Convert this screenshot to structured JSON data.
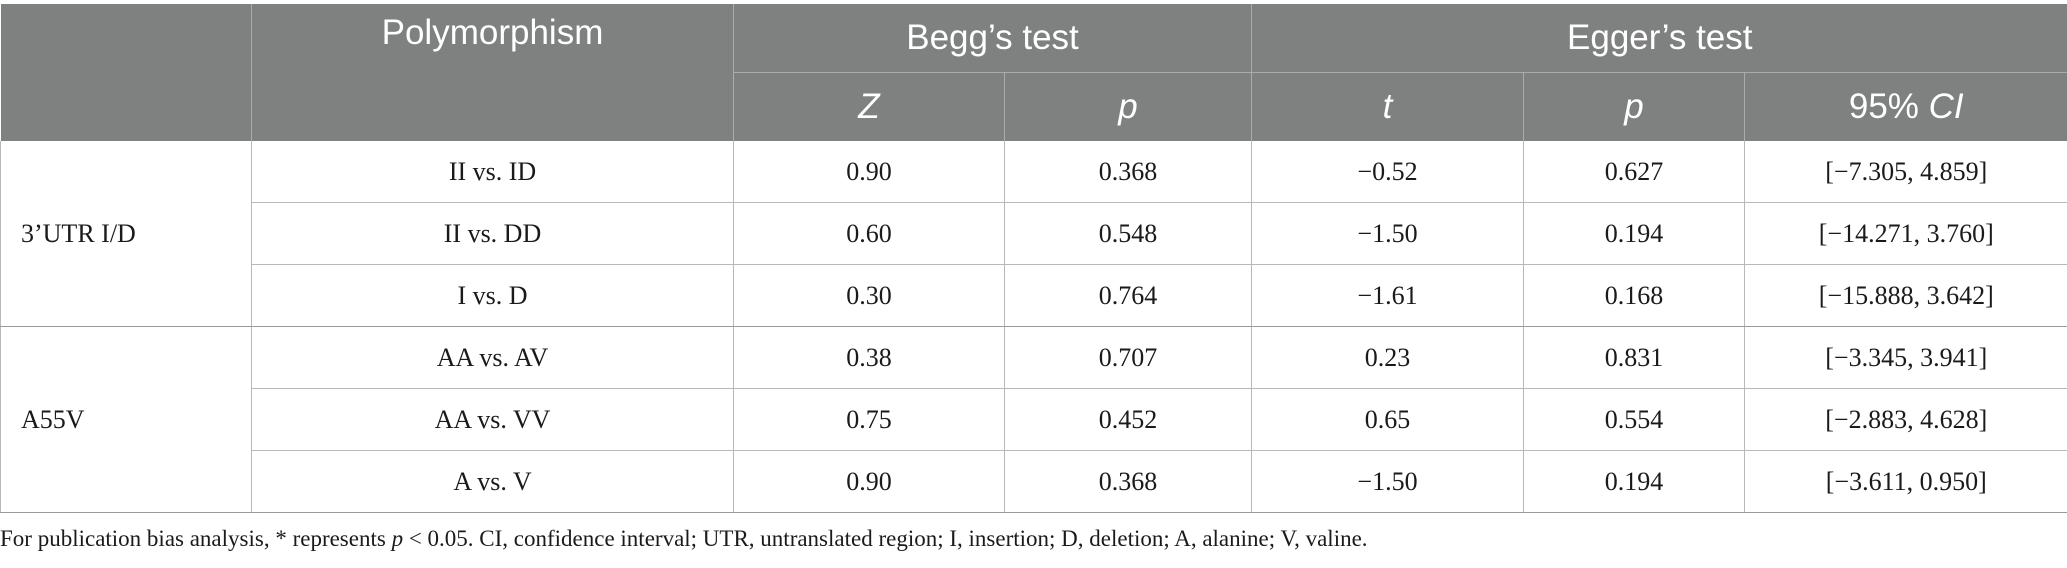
{
  "table": {
    "header": {
      "polymorphism": "Polymorphism",
      "begg": "Begg’s test",
      "egger": "Egger’s test",
      "begg_z": "Z",
      "begg_p": "p",
      "egger_t": "t",
      "egger_p": "p",
      "egger_ci_num": "95%",
      "egger_ci_label": "CI"
    },
    "groups": [
      {
        "name": "3’UTR I/D",
        "rows": [
          {
            "comparison": "II vs. ID",
            "z": "0.90",
            "begg_p": "0.368",
            "t": "−0.52",
            "egger_p": "0.627",
            "ci": "[−7.305, 4.859]"
          },
          {
            "comparison": "II vs. DD",
            "z": "0.60",
            "begg_p": "0.548",
            "t": "−1.50",
            "egger_p": "0.194",
            "ci": "[−14.271, 3.760]"
          },
          {
            "comparison": "I vs. D",
            "z": "0.30",
            "begg_p": "0.764",
            "t": "−1.61",
            "egger_p": "0.168",
            "ci": "[−15.888, 3.642]"
          }
        ]
      },
      {
        "name": "A55V",
        "rows": [
          {
            "comparison": "AA vs. AV",
            "z": "0.38",
            "begg_p": "0.707",
            "t": "0.23",
            "egger_p": "0.831",
            "ci": "[−3.345, 3.941]"
          },
          {
            "comparison": "AA vs. VV",
            "z": "0.75",
            "begg_p": "0.452",
            "t": "0.65",
            "egger_p": "0.554",
            "ci": "[−2.883, 4.628]"
          },
          {
            "comparison": "A vs. V",
            "z": "0.90",
            "begg_p": "0.368",
            "t": "−1.50",
            "egger_p": "0.194",
            "ci": "[−3.611, 0.950]"
          }
        ]
      }
    ]
  },
  "footnote": {
    "part1": "For publication bias analysis, * represents ",
    "p_symbol": "p",
    "part2": " < 0.05. CI, confidence interval; UTR, untranslated region; I, insertion; D, deletion; A, alanine; V, valine."
  },
  "colors": {
    "header_bg": "#7f8180",
    "header_text": "#ffffff",
    "grid": "#b8b8b8"
  }
}
